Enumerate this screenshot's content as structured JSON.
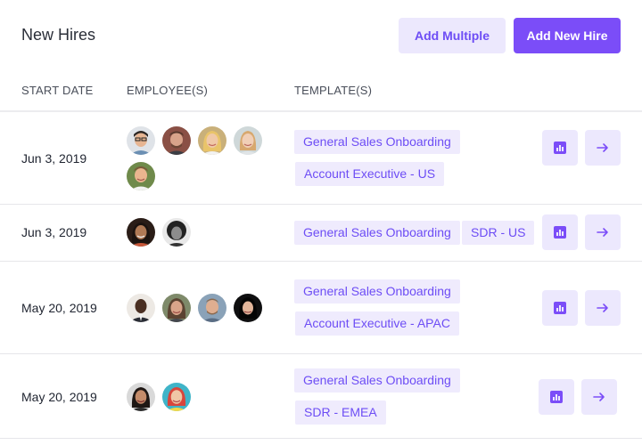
{
  "header": {
    "title": "New Hires",
    "add_multiple_label": "Add Multiple",
    "add_new_hire_label": "Add New Hire"
  },
  "columns": {
    "start_date": "START DATE",
    "employees": "EMPLOYEE(S)",
    "templates": "TEMPLATE(S)"
  },
  "rows": [
    {
      "date": "Jun 3, 2019",
      "employee_count": 5,
      "templates": [
        "General Sales Onboarding",
        "Account Executive - US"
      ]
    },
    {
      "date": "Jun 3, 2019",
      "employee_count": 2,
      "templates": [
        "General Sales Onboarding",
        "SDR - US"
      ]
    },
    {
      "date": "May 20, 2019",
      "employee_count": 4,
      "templates": [
        "General Sales Onboarding",
        "Account Executive - APAC"
      ]
    },
    {
      "date": "May 20, 2019",
      "employee_count": 2,
      "templates": [
        "General Sales Onboarding",
        "SDR - EMEA"
      ]
    }
  ],
  "icons": {
    "report": "bar-chart-icon",
    "open": "arrow-right-icon"
  },
  "colors": {
    "accent": "#7b4df8",
    "accent_light": "#ece8fd",
    "tag_text": "#6d4df5"
  }
}
